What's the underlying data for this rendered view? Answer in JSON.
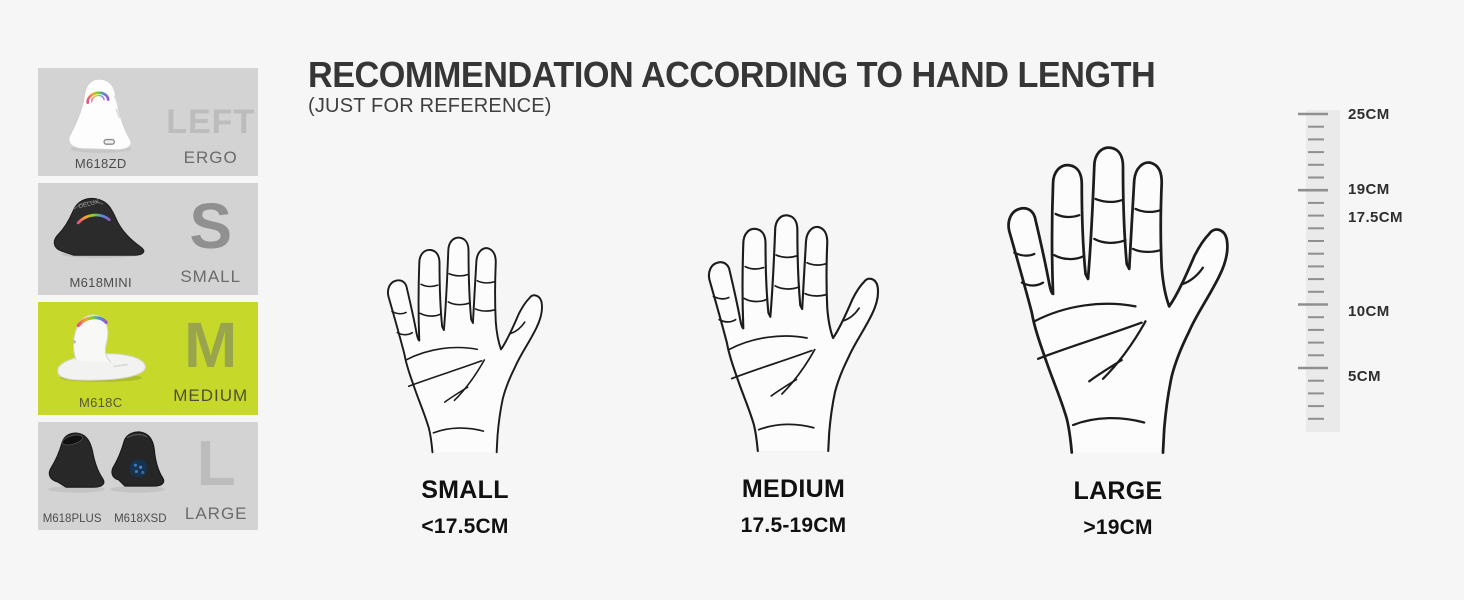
{
  "page": {
    "title": "RECOMMENDATION ACCORDING TO HAND LENGTH",
    "subtitle": "(JUST FOR REFERENCE)"
  },
  "sidebar": {
    "products": [
      {
        "model": "M618ZD",
        "size_letter": "LEFT",
        "size_label": "ERGO",
        "mouse_color": "white",
        "highlighted": false
      },
      {
        "model": "M618MINI",
        "size_letter": "S",
        "size_label": "SMALL",
        "mouse_color": "black",
        "brand": "DELUX",
        "highlighted": false
      },
      {
        "model": "M618C",
        "size_letter": "M",
        "size_label": "MEDIUM",
        "mouse_color": "white",
        "highlighted": true
      },
      {
        "models": [
          "M618PLUS",
          "M618XSD"
        ],
        "size_letter": "L",
        "size_label": "LARGE",
        "mouse_color": "black",
        "highlighted": false
      }
    ]
  },
  "hands": [
    {
      "name": "SMALL",
      "range": "<17.5CM"
    },
    {
      "name": "MEDIUM",
      "range": "17.5-19CM"
    },
    {
      "name": "LARGE",
      "range": ">19CM"
    }
  ],
  "ruler": {
    "unit": "CM",
    "max_cm": 25,
    "tick_spacing_px": 12.7,
    "major_cms": [
      25,
      19,
      10,
      5
    ],
    "labels": [
      {
        "text": "25CM",
        "cm": 25
      },
      {
        "text": "19CM",
        "cm": 19
      },
      {
        "text": "17.5CM",
        "cm": 17.5
      },
      {
        "text": "10CM",
        "cm": 10
      },
      {
        "text": "5CM",
        "cm": 5
      }
    ]
  },
  "colors": {
    "background": "#f6f6f6",
    "card_gray": "#d3d3d3",
    "highlight_green": "#c6d92b",
    "title_text": "#363636",
    "hand_line": "#1c1c1c"
  }
}
